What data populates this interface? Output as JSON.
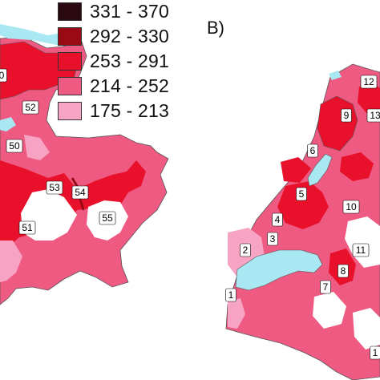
{
  "panel_b_label": "B)",
  "legend": [
    {
      "label": "331 - 370",
      "color": "#2a0a10"
    },
    {
      "label": "292 - 330",
      "color": "#9a0a14"
    },
    {
      "label": "253 - 291",
      "color": "#e8102a"
    },
    {
      "label": "214 - 252",
      "color": "#ee5a82"
    },
    {
      "label": "175 - 213",
      "color": "#f7a4c4"
    }
  ],
  "colors": {
    "lake": "#a9e8f2",
    "border": "#555555",
    "white": "#ffffff"
  },
  "map_a_labels": [
    "0",
    "52",
    "50",
    "53",
    "54",
    "51",
    "55"
  ],
  "map_b_labels": [
    "12",
    "9",
    "13",
    "6",
    "5",
    "4",
    "10",
    "3",
    "2",
    "11",
    "8",
    "7",
    "1",
    "1"
  ]
}
